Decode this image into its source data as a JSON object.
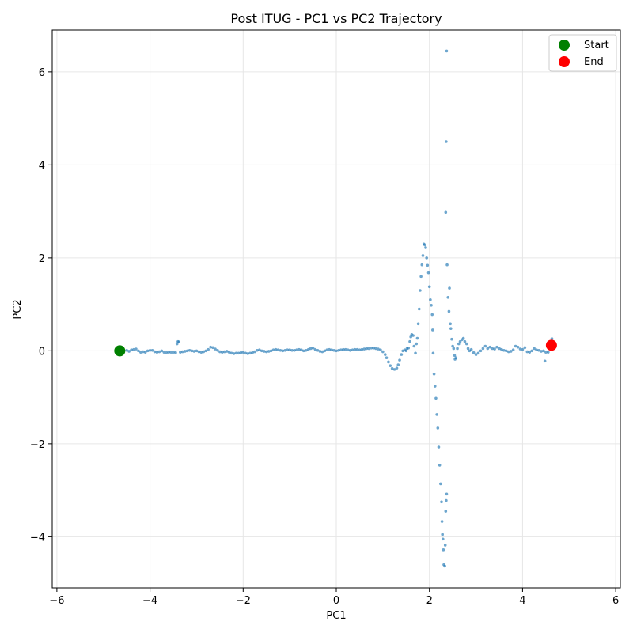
{
  "chart_data": {
    "type": "scatter",
    "title": "Post ITUG - PC1 vs PC2 Trajectory",
    "xlabel": "PC1",
    "ylabel": "PC2",
    "xlim": [
      -6.1,
      6.1
    ],
    "ylim": [
      -5.1,
      6.9
    ],
    "xticks": [
      -6,
      -4,
      -2,
      0,
      2,
      4,
      6
    ],
    "yticks": [
      -4,
      -2,
      0,
      2,
      4,
      6
    ],
    "grid": true,
    "legend_position": "top-right",
    "colors": {
      "trajectory": "#1f77b4",
      "start": "#008000",
      "end": "#ff0000"
    },
    "series": [
      {
        "role": "trajectory",
        "points": [
          [
            -4.6,
            0.0
          ],
          [
            -4.5,
            0.01
          ],
          [
            -4.45,
            -0.01
          ],
          [
            -4.4,
            0.02
          ],
          [
            -4.35,
            0.03
          ],
          [
            -4.3,
            0.04
          ],
          [
            -4.25,
            0.0
          ],
          [
            -4.2,
            -0.03
          ],
          [
            -4.15,
            -0.02
          ],
          [
            -4.1,
            -0.03
          ],
          [
            -4.05,
            0.0
          ],
          [
            -4.0,
            0.01
          ],
          [
            -3.95,
            0.01
          ],
          [
            -3.9,
            -0.02
          ],
          [
            -3.85,
            -0.03
          ],
          [
            -3.8,
            -0.02
          ],
          [
            -3.75,
            0.0
          ],
          [
            -3.7,
            -0.03
          ],
          [
            -3.65,
            -0.04
          ],
          [
            -3.6,
            -0.03
          ],
          [
            -3.55,
            -0.03
          ],
          [
            -3.5,
            -0.03
          ],
          [
            -3.45,
            -0.04
          ],
          [
            -3.42,
            0.15
          ],
          [
            -3.4,
            0.2
          ],
          [
            -3.38,
            0.19
          ],
          [
            -3.35,
            -0.03
          ],
          [
            -3.3,
            -0.02
          ],
          [
            -3.25,
            -0.01
          ],
          [
            -3.2,
            0.0
          ],
          [
            -3.15,
            0.01
          ],
          [
            -3.1,
            0.0
          ],
          [
            -3.05,
            -0.01
          ],
          [
            -3.0,
            0.0
          ],
          [
            -2.95,
            -0.02
          ],
          [
            -2.9,
            -0.03
          ],
          [
            -2.85,
            -0.02
          ],
          [
            -2.8,
            0.0
          ],
          [
            -2.75,
            0.03
          ],
          [
            -2.7,
            0.08
          ],
          [
            -2.65,
            0.07
          ],
          [
            -2.6,
            0.04
          ],
          [
            -2.55,
            0.01
          ],
          [
            -2.5,
            -0.02
          ],
          [
            -2.45,
            -0.03
          ],
          [
            -2.4,
            -0.02
          ],
          [
            -2.35,
            -0.01
          ],
          [
            -2.3,
            -0.03
          ],
          [
            -2.25,
            -0.05
          ],
          [
            -2.2,
            -0.06
          ],
          [
            -2.15,
            -0.05
          ],
          [
            -2.1,
            -0.05
          ],
          [
            -2.05,
            -0.04
          ],
          [
            -2.0,
            -0.03
          ],
          [
            -1.95,
            -0.05
          ],
          [
            -1.9,
            -0.06
          ],
          [
            -1.85,
            -0.05
          ],
          [
            -1.8,
            -0.04
          ],
          [
            -1.75,
            -0.02
          ],
          [
            -1.7,
            0.01
          ],
          [
            -1.65,
            0.02
          ],
          [
            -1.6,
            0.0
          ],
          [
            -1.55,
            -0.01
          ],
          [
            -1.5,
            -0.02
          ],
          [
            -1.45,
            -0.01
          ],
          [
            -1.4,
            0.0
          ],
          [
            -1.35,
            0.02
          ],
          [
            -1.3,
            0.03
          ],
          [
            -1.25,
            0.02
          ],
          [
            -1.2,
            0.01
          ],
          [
            -1.15,
            0.0
          ],
          [
            -1.1,
            0.01
          ],
          [
            -1.05,
            0.02
          ],
          [
            -1.0,
            0.02
          ],
          [
            -0.95,
            0.01
          ],
          [
            -0.9,
            0.01
          ],
          [
            -0.85,
            0.02
          ],
          [
            -0.8,
            0.03
          ],
          [
            -0.75,
            0.02
          ],
          [
            -0.7,
            0.0
          ],
          [
            -0.65,
            0.01
          ],
          [
            -0.6,
            0.03
          ],
          [
            -0.55,
            0.05
          ],
          [
            -0.5,
            0.06
          ],
          [
            -0.45,
            0.03
          ],
          [
            -0.4,
            0.01
          ],
          [
            -0.35,
            -0.01
          ],
          [
            -0.3,
            -0.02
          ],
          [
            -0.25,
            0.0
          ],
          [
            -0.2,
            0.02
          ],
          [
            -0.15,
            0.03
          ],
          [
            -0.1,
            0.02
          ],
          [
            -0.05,
            0.01
          ],
          [
            0.0,
            0.0
          ],
          [
            0.05,
            0.01
          ],
          [
            0.1,
            0.02
          ],
          [
            0.15,
            0.03
          ],
          [
            0.2,
            0.03
          ],
          [
            0.25,
            0.02
          ],
          [
            0.3,
            0.01
          ],
          [
            0.35,
            0.02
          ],
          [
            0.4,
            0.03
          ],
          [
            0.45,
            0.03
          ],
          [
            0.5,
            0.02
          ],
          [
            0.55,
            0.03
          ],
          [
            0.6,
            0.04
          ],
          [
            0.65,
            0.05
          ],
          [
            0.7,
            0.05
          ],
          [
            0.75,
            0.06
          ],
          [
            0.8,
            0.06
          ],
          [
            0.85,
            0.05
          ],
          [
            0.9,
            0.04
          ],
          [
            0.95,
            0.02
          ],
          [
            1.0,
            -0.02
          ],
          [
            1.05,
            -0.08
          ],
          [
            1.08,
            -0.15
          ],
          [
            1.12,
            -0.24
          ],
          [
            1.16,
            -0.32
          ],
          [
            1.2,
            -0.38
          ],
          [
            1.25,
            -0.4
          ],
          [
            1.3,
            -0.37
          ],
          [
            1.33,
            -0.3
          ],
          [
            1.36,
            -0.2
          ],
          [
            1.4,
            -0.08
          ],
          [
            1.43,
            0.0
          ],
          [
            1.47,
            0.02
          ],
          [
            1.5,
            0.0
          ],
          [
            1.52,
            0.05
          ],
          [
            1.55,
            0.06
          ],
          [
            1.58,
            0.2
          ],
          [
            1.6,
            0.3
          ],
          [
            1.62,
            0.35
          ],
          [
            1.65,
            0.33
          ],
          [
            1.67,
            0.1
          ],
          [
            1.7,
            -0.05
          ],
          [
            1.72,
            0.15
          ],
          [
            1.74,
            0.27
          ],
          [
            1.76,
            0.58
          ],
          [
            1.78,
            0.9
          ],
          [
            1.8,
            1.3
          ],
          [
            1.82,
            1.6
          ],
          [
            1.84,
            1.85
          ],
          [
            1.86,
            2.05
          ],
          [
            1.88,
            2.3
          ],
          [
            1.9,
            2.28
          ],
          [
            1.92,
            2.22
          ],
          [
            1.94,
            2.0
          ],
          [
            1.96,
            1.84
          ],
          [
            1.98,
            1.68
          ],
          [
            2.0,
            1.38
          ],
          [
            2.02,
            1.1
          ],
          [
            2.04,
            0.98
          ],
          [
            2.06,
            0.78
          ],
          [
            2.07,
            0.45
          ],
          [
            2.08,
            -0.05
          ],
          [
            2.1,
            -0.5
          ],
          [
            2.12,
            -0.76
          ],
          [
            2.14,
            -1.02
          ],
          [
            2.16,
            -1.37
          ],
          [
            2.18,
            -1.66
          ],
          [
            2.2,
            -2.07
          ],
          [
            2.22,
            -2.46
          ],
          [
            2.24,
            -2.86
          ],
          [
            2.26,
            -3.25
          ],
          [
            2.27,
            -3.67
          ],
          [
            2.28,
            -3.95
          ],
          [
            2.29,
            -4.05
          ],
          [
            2.3,
            -4.28
          ],
          [
            2.31,
            -4.6
          ],
          [
            2.33,
            -4.63
          ],
          [
            2.34,
            -4.18
          ],
          [
            2.35,
            -3.45
          ],
          [
            2.36,
            -3.22
          ],
          [
            2.37,
            -3.08
          ],
          [
            2.35,
            2.98
          ],
          [
            2.36,
            4.5
          ],
          [
            2.37,
            6.45
          ],
          [
            2.38,
            1.85
          ],
          [
            2.4,
            1.15
          ],
          [
            2.42,
            0.85
          ],
          [
            2.43,
            1.35
          ],
          [
            2.45,
            0.58
          ],
          [
            2.46,
            0.48
          ],
          [
            2.48,
            0.25
          ],
          [
            2.5,
            0.1
          ],
          [
            2.52,
            0.05
          ],
          [
            2.54,
            -0.1
          ],
          [
            2.55,
            -0.18
          ],
          [
            2.57,
            -0.15
          ],
          [
            2.6,
            0.05
          ],
          [
            2.63,
            0.15
          ],
          [
            2.66,
            0.2
          ],
          [
            2.7,
            0.24
          ],
          [
            2.73,
            0.27
          ],
          [
            2.76,
            0.2
          ],
          [
            2.8,
            0.15
          ],
          [
            2.83,
            0.05
          ],
          [
            2.86,
            0.0
          ],
          [
            2.9,
            0.03
          ],
          [
            2.95,
            -0.04
          ],
          [
            3.0,
            -0.08
          ],
          [
            3.05,
            -0.05
          ],
          [
            3.1,
            0.0
          ],
          [
            3.15,
            0.05
          ],
          [
            3.2,
            0.1
          ],
          [
            3.25,
            0.05
          ],
          [
            3.3,
            0.08
          ],
          [
            3.35,
            0.05
          ],
          [
            3.4,
            0.04
          ],
          [
            3.45,
            0.08
          ],
          [
            3.5,
            0.05
          ],
          [
            3.55,
            0.03
          ],
          [
            3.6,
            0.01
          ],
          [
            3.65,
            0.0
          ],
          [
            3.7,
            -0.02
          ],
          [
            3.75,
            -0.01
          ],
          [
            3.8,
            0.02
          ],
          [
            3.85,
            0.1
          ],
          [
            3.9,
            0.08
          ],
          [
            3.95,
            0.04
          ],
          [
            4.0,
            0.03
          ],
          [
            4.05,
            0.07
          ],
          [
            4.1,
            -0.02
          ],
          [
            4.15,
            -0.03
          ],
          [
            4.2,
            0.0
          ],
          [
            4.25,
            0.05
          ],
          [
            4.3,
            0.02
          ],
          [
            4.35,
            0.01
          ],
          [
            4.4,
            -0.01
          ],
          [
            4.45,
            0.0
          ],
          [
            4.48,
            -0.22
          ],
          [
            4.5,
            -0.03
          ],
          [
            4.55,
            -0.03
          ],
          [
            4.6,
            0.2
          ],
          [
            4.63,
            0.26
          ],
          [
            4.65,
            0.12
          ]
        ]
      },
      {
        "name": "Start",
        "role": "start",
        "points": [
          [
            -4.65,
            0.0
          ]
        ]
      },
      {
        "name": "End",
        "role": "end",
        "points": [
          [
            4.62,
            0.12
          ]
        ]
      }
    ],
    "legend": [
      "Start",
      "End"
    ]
  }
}
